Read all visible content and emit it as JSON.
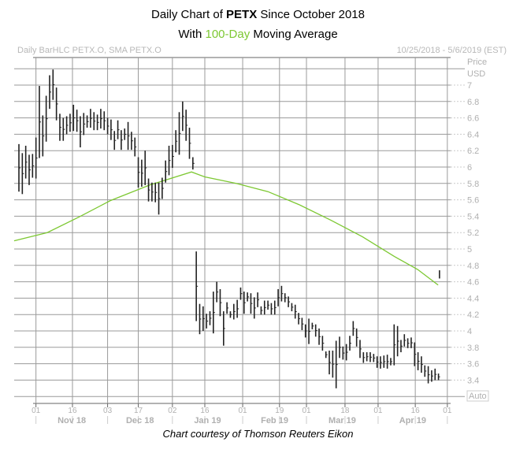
{
  "title": {
    "line1_pre": "Daily Chart of ",
    "line1_ticker": "PETX",
    "line1_post": " Since October 2018",
    "line2_pre": "With ",
    "line2_ma": "100-Day",
    "line2_post": " Moving Average"
  },
  "header": {
    "left": "Daily BarHLC PETX.O, SMA PETX.O",
    "right": "10/25/2018 - 5/6/2019 (EST)"
  },
  "axis": {
    "price_label": "Price",
    "currency_label": "USD",
    "auto_label": "Auto"
  },
  "caption": "Chart courtesy of Thomson Reuters Eikon",
  "colors": {
    "bars": "#222222",
    "sma": "#7dc832",
    "grid": "#9a9a9a",
    "axis_text": "#b0b0b0"
  },
  "chart_data": {
    "type": "bar-hlc",
    "title": "Daily Chart of PETX Since October 2018 With 100-Day Moving Average",
    "ylim": [
      3.16,
      7.34
    ],
    "yticks": [
      3.4,
      3.6,
      3.8,
      4,
      4.2,
      4.4,
      4.6,
      4.8,
      5,
      5.2,
      5.4,
      5.6,
      5.8,
      6,
      6.2,
      6.4,
      6.6,
      6.8,
      7
    ],
    "xticks": [
      {
        "label": "01",
        "index": 5
      },
      {
        "label": "16",
        "index": 15.7
      },
      {
        "label": "03",
        "index": 26
      },
      {
        "label": "17",
        "index": 35
      },
      {
        "label": "02",
        "index": 45
      },
      {
        "label": "16",
        "index": 54.5
      },
      {
        "label": "01",
        "index": 65.6
      },
      {
        "label": "19",
        "index": 76.4
      },
      {
        "label": "01",
        "index": 84.3
      },
      {
        "label": "18",
        "index": 95.6
      },
      {
        "label": "01",
        "index": 105.3
      },
      {
        "label": "16",
        "index": 116.2
      },
      {
        "label": "01",
        "index": 125.6
      }
    ],
    "months": [
      {
        "label": "Nov 18",
        "start": 5,
        "end": 26
      },
      {
        "label": "Dec 18",
        "start": 26,
        "end": 45
      },
      {
        "label": "Jan 19",
        "start": 45,
        "end": 65.6
      },
      {
        "label": "Feb 19",
        "start": 65.6,
        "end": 84.3
      },
      {
        "label": "Mar 19",
        "start": 84.3,
        "end": 105.3
      },
      {
        "label": "Apr 19",
        "start": 105.3,
        "end": 125.6
      }
    ],
    "bars_hl": [
      [
        6.28,
        5.7
      ],
      [
        6.17,
        5.67
      ],
      [
        6.26,
        5.86
      ],
      [
        6.15,
        5.78
      ],
      [
        6.16,
        5.87
      ],
      [
        6.36,
        5.86
      ],
      [
        6.99,
        6.11
      ],
      [
        6.63,
        6.13
      ],
      [
        6.87,
        6.31
      ],
      [
        7.12,
        6.71
      ],
      [
        7.19,
        6.82
      ],
      [
        6.97,
        6.57
      ],
      [
        6.65,
        6.32
      ],
      [
        6.6,
        6.32
      ],
      [
        6.62,
        6.4
      ],
      [
        6.65,
        6.43
      ],
      [
        6.76,
        6.44
      ],
      [
        6.7,
        6.43
      ],
      [
        6.62,
        6.24
      ],
      [
        6.66,
        6.39
      ],
      [
        6.63,
        6.48
      ],
      [
        6.71,
        6.48
      ],
      [
        6.67,
        6.45
      ],
      [
        6.64,
        6.45
      ],
      [
        6.71,
        6.47
      ],
      [
        6.68,
        6.45
      ],
      [
        6.6,
        6.4
      ],
      [
        6.58,
        6.33
      ],
      [
        6.44,
        6.21
      ],
      [
        6.57,
        6.34
      ],
      [
        6.45,
        6.21
      ],
      [
        6.47,
        6.33
      ],
      [
        6.55,
        6.21
      ],
      [
        6.43,
        6.21
      ],
      [
        6.36,
        6.13
      ],
      [
        6.12,
        5.75
      ],
      [
        6.09,
        5.76
      ],
      [
        6.2,
        5.78
      ],
      [
        5.86,
        5.58
      ],
      [
        5.81,
        5.58
      ],
      [
        5.81,
        5.57
      ],
      [
        5.81,
        5.42
      ],
      [
        5.87,
        5.61
      ],
      [
        6.08,
        5.81
      ],
      [
        6.26,
        5.9
      ],
      [
        6.27,
        5.99
      ],
      [
        6.45,
        6.18
      ],
      [
        6.67,
        6.15
      ],
      [
        6.8,
        6.44
      ],
      [
        6.7,
        6.32
      ],
      [
        6.48,
        6.1
      ],
      [
        6.12,
        5.97
      ],
      [
        4.97,
        4.12
      ],
      [
        4.33,
        3.96
      ],
      [
        4.3,
        4.0
      ],
      [
        4.21,
        4.03
      ],
      [
        4.24,
        4.07
      ],
      [
        4.48,
        3.97
      ],
      [
        4.6,
        4.35
      ],
      [
        4.51,
        4.18
      ],
      [
        4.24,
        3.82
      ],
      [
        4.35,
        4.21
      ],
      [
        4.24,
        4.16
      ],
      [
        4.33,
        4.14
      ],
      [
        4.38,
        4.16
      ],
      [
        4.53,
        4.38
      ],
      [
        4.48,
        4.21
      ],
      [
        4.47,
        4.36
      ],
      [
        4.46,
        4.21
      ],
      [
        4.41,
        4.15
      ],
      [
        4.47,
        4.29
      ],
      [
        4.3,
        4.2
      ],
      [
        4.37,
        4.2
      ],
      [
        4.37,
        4.26
      ],
      [
        4.34,
        4.2
      ],
      [
        4.37,
        4.2
      ],
      [
        4.51,
        4.3
      ],
      [
        4.55,
        4.36
      ],
      [
        4.46,
        4.35
      ],
      [
        4.42,
        4.29
      ],
      [
        4.34,
        4.24
      ],
      [
        4.32,
        4.15
      ],
      [
        4.22,
        4.08
      ],
      [
        4.16,
        4.01
      ],
      [
        4.08,
        3.92
      ],
      [
        4.15,
        3.84
      ],
      [
        4.1,
        4.02
      ],
      [
        4.08,
        3.93
      ],
      [
        4.03,
        3.83
      ],
      [
        3.94,
        3.76
      ],
      [
        3.75,
        3.67
      ],
      [
        3.76,
        3.47
      ],
      [
        3.76,
        3.43
      ],
      [
        3.88,
        3.3
      ],
      [
        3.93,
        3.67
      ],
      [
        3.81,
        3.65
      ],
      [
        3.84,
        3.64
      ],
      [
        3.94,
        3.76
      ],
      [
        4.12,
        3.94
      ],
      [
        4.03,
        3.81
      ],
      [
        3.89,
        3.67
      ],
      [
        3.74,
        3.61
      ],
      [
        3.74,
        3.63
      ],
      [
        3.74,
        3.62
      ],
      [
        3.72,
        3.62
      ],
      [
        3.69,
        3.55
      ],
      [
        3.69,
        3.54
      ],
      [
        3.7,
        3.55
      ],
      [
        3.71,
        3.54
      ],
      [
        3.67,
        3.58
      ],
      [
        4.08,
        3.58
      ],
      [
        4.06,
        3.69
      ],
      [
        3.89,
        3.74
      ],
      [
        3.96,
        3.81
      ],
      [
        3.91,
        3.79
      ],
      [
        3.92,
        3.79
      ],
      [
        3.86,
        3.57
      ],
      [
        3.74,
        3.52
      ],
      [
        3.69,
        3.49
      ],
      [
        3.58,
        3.44
      ],
      [
        3.57,
        3.36
      ],
      [
        3.52,
        3.38
      ],
      [
        3.54,
        3.4
      ],
      [
        3.48,
        3.4
      ]
    ],
    "last_bar": {
      "index": 123.3,
      "high": 4.74,
      "low": 4.64
    },
    "sma_100": [
      [
        -1.4,
        5.1
      ],
      [
        8.3,
        5.2
      ],
      [
        17.6,
        5.39
      ],
      [
        26.8,
        5.59
      ],
      [
        38.3,
        5.78
      ],
      [
        50.6,
        5.94
      ],
      [
        54.5,
        5.88
      ],
      [
        63.7,
        5.8
      ],
      [
        73,
        5.7
      ],
      [
        82.2,
        5.54
      ],
      [
        91.5,
        5.35
      ],
      [
        100.7,
        5.15
      ],
      [
        110,
        4.91
      ],
      [
        116.9,
        4.75
      ],
      [
        122.9,
        4.56
      ]
    ]
  }
}
